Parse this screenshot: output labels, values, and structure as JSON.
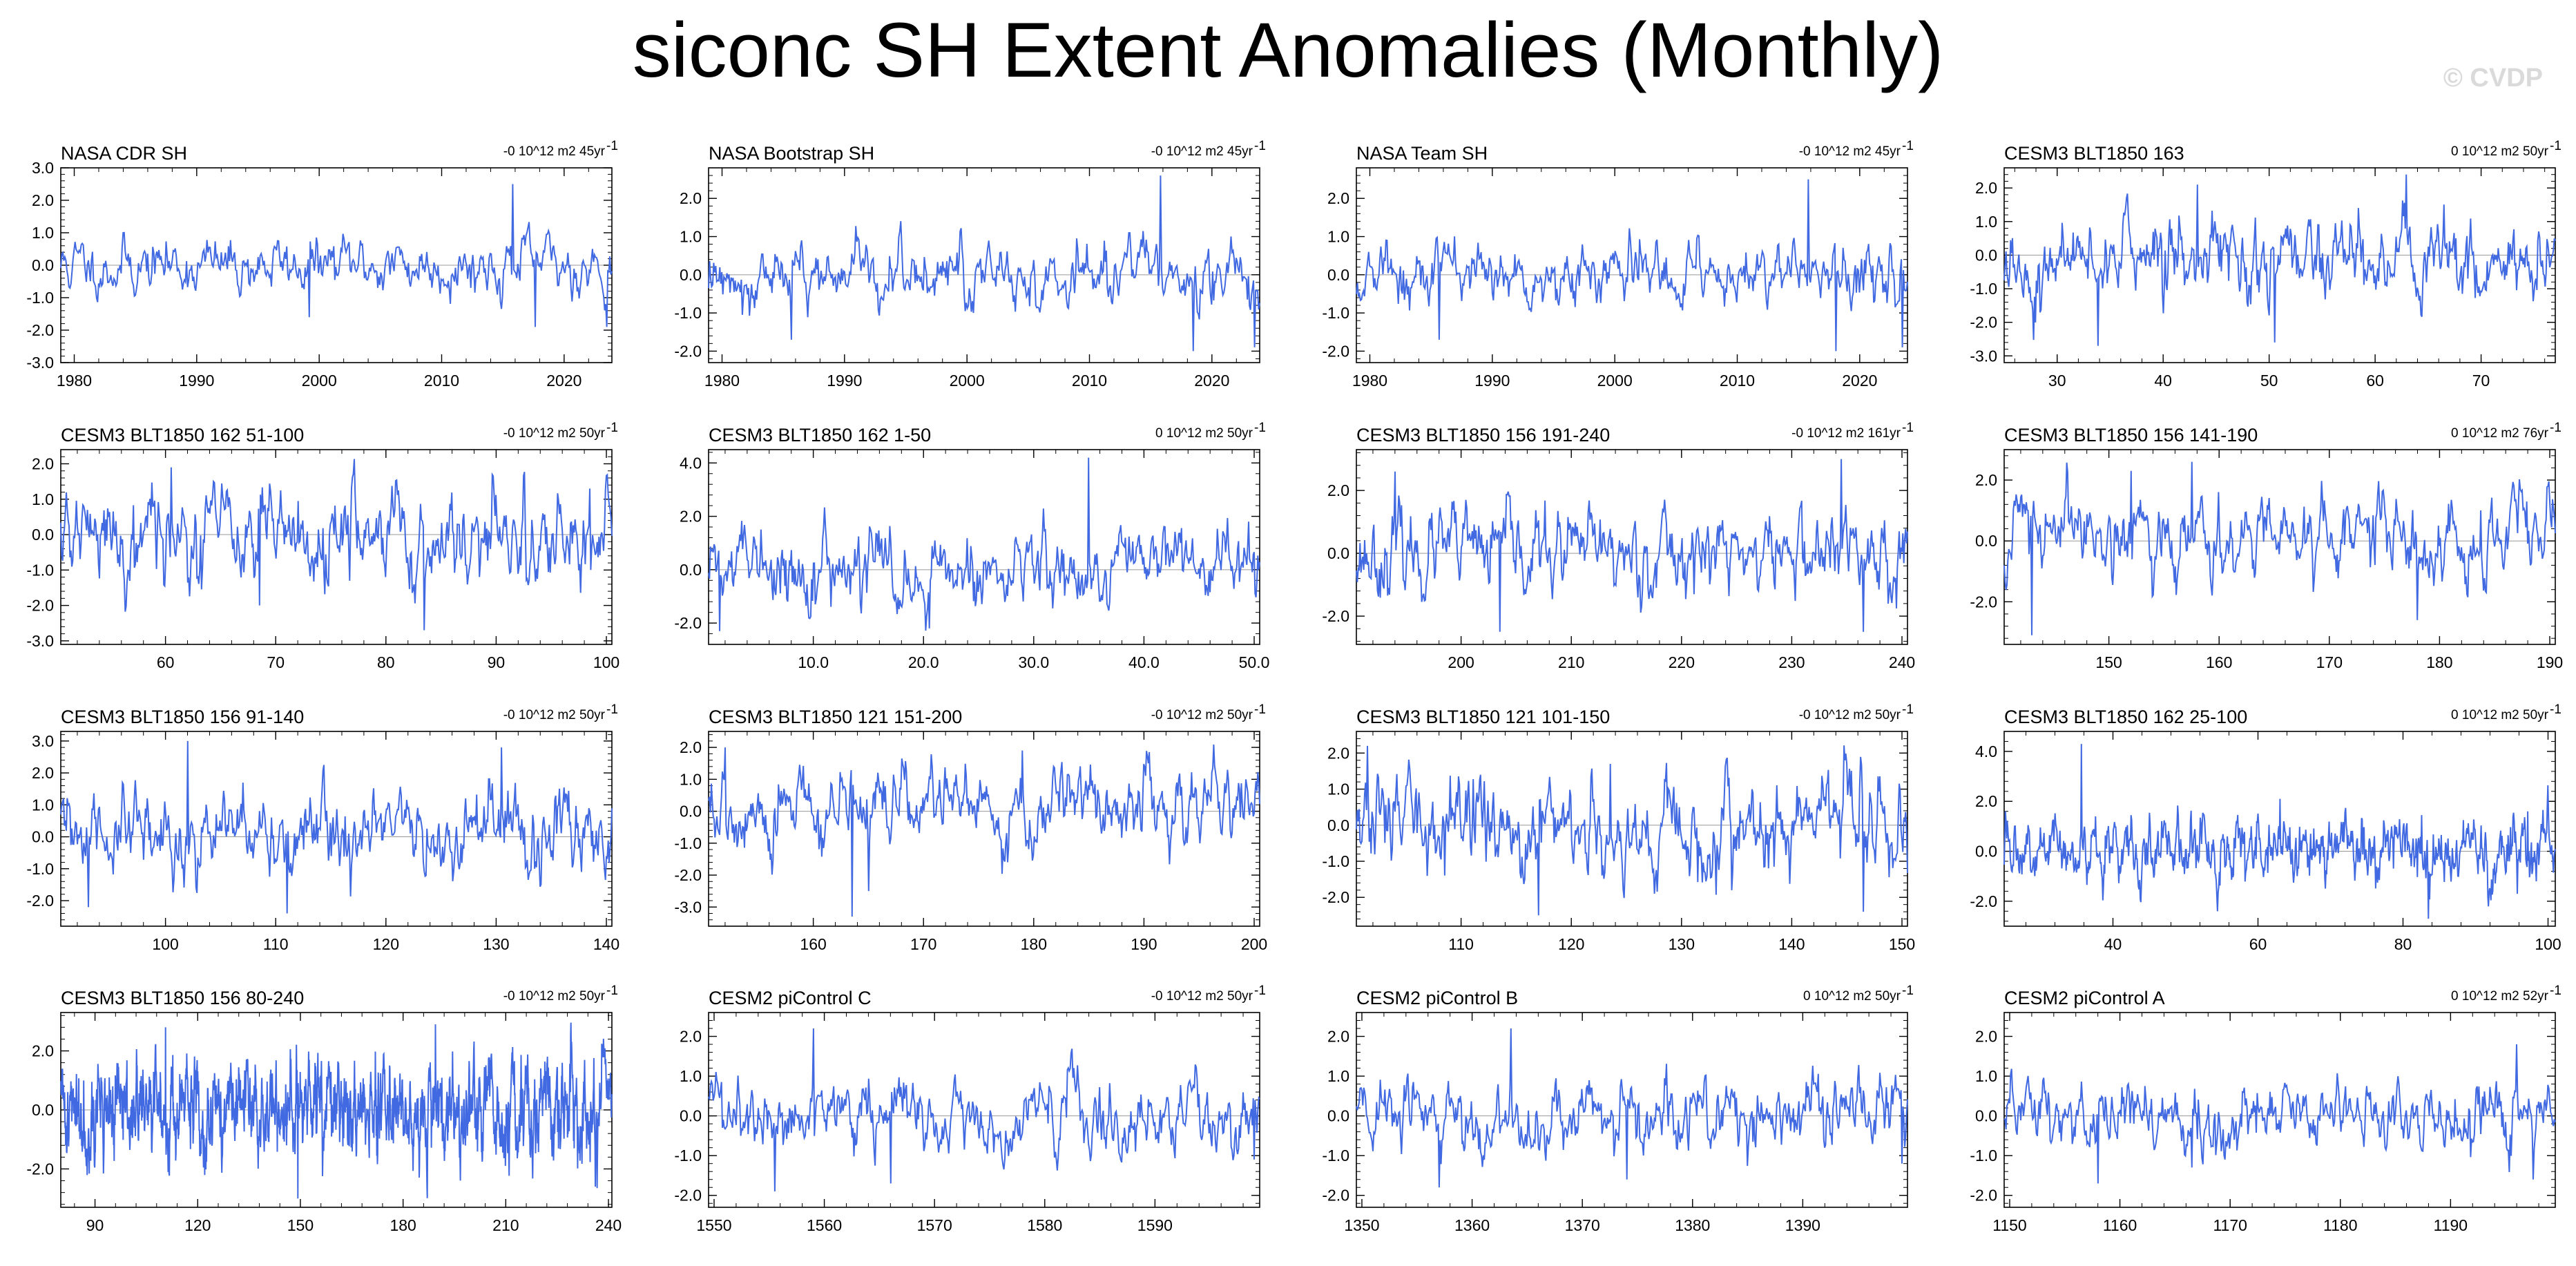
{
  "title": "siconc SH Extent Anomalies (Monthly)",
  "watermark": "© CVDP",
  "chart_data": [
    {
      "type": "line",
      "title": "NASA CDR SH",
      "trend": "-0 10^12 m2 45yr",
      "series_color": "#4169e1",
      "x_range": [
        1978.9,
        2023.9
      ],
      "ylim": [
        -3,
        3
      ],
      "x_ticks": [
        1980,
        1990,
        2000,
        2010,
        2020
      ],
      "y_ticks": [
        "3.0",
        "2.0",
        "1.0",
        "0.0",
        "-1.0",
        "-2.0",
        "-3.0"
      ],
      "y_tick_values": [
        3,
        2,
        1,
        0,
        -1,
        -2,
        -3
      ],
      "n_points": 540,
      "seed": 11,
      "amplitude": 0.5,
      "extremes": [
        [
          0.82,
          2.5
        ],
        [
          0.86,
          -1.9
        ],
        [
          0.99,
          -1.9
        ],
        [
          0.45,
          -1.6
        ]
      ]
    },
    {
      "type": "line",
      "title": "NASA Bootstrap SH",
      "trend": "-0 10^12 m2 45yr",
      "series_color": "#4169e1",
      "x_range": [
        1978.9,
        2023.9
      ],
      "ylim": [
        -2.3,
        2.8
      ],
      "x_ticks": [
        1980,
        1990,
        2000,
        2010,
        2020
      ],
      "y_ticks": [
        "2.0",
        "1.0",
        "0.0",
        "-1.0",
        "-2.0"
      ],
      "y_tick_values": [
        2,
        1,
        0,
        -1,
        -2
      ],
      "n_points": 540,
      "seed": 12,
      "amplitude": 0.5,
      "extremes": [
        [
          0.82,
          2.6
        ],
        [
          0.88,
          -2.0
        ],
        [
          0.99,
          -1.9
        ],
        [
          0.15,
          -1.7
        ]
      ]
    },
    {
      "type": "line",
      "title": "NASA Team SH",
      "trend": "-0 10^12 m2 45yr",
      "series_color": "#4169e1",
      "x_range": [
        1978.9,
        2023.9
      ],
      "ylim": [
        -2.3,
        2.8
      ],
      "x_ticks": [
        1980,
        1990,
        2000,
        2010,
        2020
      ],
      "y_ticks": [
        "2.0",
        "1.0",
        "0.0",
        "-1.0",
        "-2.0"
      ],
      "y_tick_values": [
        2,
        1,
        0,
        -1,
        -2
      ],
      "n_points": 540,
      "seed": 13,
      "amplitude": 0.5,
      "extremes": [
        [
          0.82,
          2.5
        ],
        [
          0.87,
          -2.0
        ],
        [
          0.99,
          -1.9
        ],
        [
          0.15,
          -1.7
        ]
      ]
    },
    {
      "type": "line",
      "title": "CESM3 BLT1850 163",
      "trend": "0 10^12 m2 50yr",
      "series_color": "#4169e1",
      "x_range": [
        25,
        77
      ],
      "ylim": [
        -3.2,
        2.6
      ],
      "x_ticks": [
        30,
        40,
        50,
        60,
        70
      ],
      "y_ticks": [
        "2.0",
        "1.0",
        "0.0",
        "-1.0",
        "-2.0",
        "-3.0"
      ],
      "y_tick_values": [
        2,
        1,
        0,
        -1,
        -2,
        -3
      ],
      "n_points": 600,
      "seed": 14,
      "amplitude": 0.75,
      "extremes": [
        [
          0.73,
          2.4
        ],
        [
          0.17,
          -2.7
        ],
        [
          0.49,
          -2.6
        ],
        [
          0.35,
          2.1
        ]
      ]
    },
    {
      "type": "line",
      "title": "CESM3 BLT1850 162 51-100",
      "trend": "-0 10^12 m2 50yr",
      "series_color": "#4169e1",
      "x_range": [
        50.5,
        100.5
      ],
      "ylim": [
        -3.1,
        2.4
      ],
      "x_ticks": [
        60,
        70,
        80,
        90,
        100
      ],
      "y_ticks": [
        "2.0",
        "1.0",
        "0.0",
        "-1.0",
        "-2.0",
        "-3.0"
      ],
      "y_tick_values": [
        2,
        1,
        0,
        -1,
        -2,
        -3
      ],
      "n_points": 600,
      "seed": 21,
      "amplitude": 0.8,
      "extremes": [
        [
          0.66,
          -2.7
        ],
        [
          0.2,
          1.9
        ],
        [
          0.36,
          -2.0
        ],
        [
          0.96,
          1.3
        ]
      ]
    },
    {
      "type": "line",
      "title": "CESM3 BLT1850 162 1-50",
      "trend": "0 10^12 m2 50yr",
      "series_color": "#4169e1",
      "x_range": [
        0.5,
        50.5
      ],
      "ylim": [
        -2.8,
        4.5
      ],
      "x_ticks": [
        10,
        20,
        30,
        40,
        50
      ],
      "x_tick_labels": [
        "10.0",
        "20.0",
        "30.0",
        "40.0",
        "50.0"
      ],
      "y_ticks": [
        "4.0",
        "2.0",
        "0.0",
        "-2.0"
      ],
      "y_tick_values": [
        4,
        2,
        0,
        -2
      ],
      "n_points": 600,
      "seed": 22,
      "amplitude": 0.8,
      "extremes": [
        [
          0.69,
          4.2
        ],
        [
          0.02,
          -2.3
        ],
        [
          0.98,
          1.8
        ],
        [
          0.4,
          -2.2
        ]
      ]
    },
    {
      "type": "line",
      "title": "CESM3 BLT1850 156 191-240",
      "trend": "-0 10^12 m2 161yr",
      "series_color": "#4169e1",
      "x_range": [
        190.5,
        240.5
      ],
      "ylim": [
        -2.9,
        3.3
      ],
      "x_ticks": [
        200,
        210,
        220,
        230,
        240
      ],
      "y_ticks": [
        "2.0",
        "0.0",
        "-2.0"
      ],
      "y_tick_values": [
        2,
        0,
        -2
      ],
      "n_points": 600,
      "seed": 23,
      "amplitude": 0.8,
      "extremes": [
        [
          0.88,
          3.0
        ],
        [
          0.92,
          -2.5
        ],
        [
          0.26,
          -2.5
        ],
        [
          0.07,
          2.6
        ]
      ]
    },
    {
      "type": "line",
      "title": "CESM3 BLT1850 156 141-190",
      "trend": "0 10^12 m2 76yr",
      "series_color": "#4169e1",
      "x_range": [
        140.5,
        190.5
      ],
      "ylim": [
        -3.4,
        3.0
      ],
      "x_ticks": [
        150,
        160,
        170,
        180,
        190
      ],
      "y_ticks": [
        "2.0",
        "0.0",
        "-2.0"
      ],
      "y_tick_values": [
        2,
        0,
        -2
      ],
      "n_points": 600,
      "seed": 24,
      "amplitude": 0.8,
      "extremes": [
        [
          0.34,
          2.6
        ],
        [
          0.05,
          -3.1
        ],
        [
          0.75,
          -2.6
        ],
        [
          0.23,
          2.3
        ]
      ]
    },
    {
      "type": "line",
      "title": "CESM3 BLT1850 156 91-140",
      "trend": "-0 10^12 m2 50yr",
      "series_color": "#4169e1",
      "x_range": [
        90.5,
        140.5
      ],
      "ylim": [
        -2.8,
        3.3
      ],
      "x_ticks": [
        100,
        110,
        120,
        130,
        140
      ],
      "y_ticks": [
        "3.0",
        "2.0",
        "1.0",
        "0.0",
        "-1.0",
        "-2.0"
      ],
      "y_tick_values": [
        3,
        2,
        1,
        0,
        -1,
        -2
      ],
      "n_points": 600,
      "seed": 31,
      "amplitude": 0.8,
      "extremes": [
        [
          0.23,
          3.0
        ],
        [
          0.41,
          -2.4
        ],
        [
          0.8,
          2.8
        ],
        [
          0.05,
          -2.2
        ]
      ]
    },
    {
      "type": "line",
      "title": "CESM3 BLT1850 121 151-200",
      "trend": "-0 10^12 m2 50yr",
      "series_color": "#4169e1",
      "x_range": [
        150.5,
        200.5
      ],
      "ylim": [
        -3.6,
        2.5
      ],
      "x_ticks": [
        160,
        170,
        180,
        190,
        200
      ],
      "y_ticks": [
        "2.0",
        "1.0",
        "0.0",
        "-1.0",
        "-2.0",
        "-3.0"
      ],
      "y_tick_values": [
        2,
        1,
        0,
        -1,
        -2,
        -3
      ],
      "n_points": 600,
      "seed": 32,
      "amplitude": 0.75,
      "extremes": [
        [
          0.26,
          -3.3
        ],
        [
          0.03,
          2.0
        ],
        [
          0.57,
          1.9
        ],
        [
          0.29,
          -2.5
        ]
      ]
    },
    {
      "type": "line",
      "title": "CESM3 BLT1850 121 101-150",
      "trend": "-0 10^12 m2 50yr",
      "series_color": "#4169e1",
      "x_range": [
        100.5,
        150.5
      ],
      "ylim": [
        -2.8,
        2.6
      ],
      "x_ticks": [
        110,
        120,
        130,
        140,
        150
      ],
      "y_ticks": [
        "2.0",
        "1.0",
        "0.0",
        "-1.0",
        "-2.0"
      ],
      "y_tick_values": [
        2,
        1,
        0,
        -1,
        -2
      ],
      "n_points": 600,
      "seed": 33,
      "amplitude": 0.8,
      "extremes": [
        [
          0.02,
          2.2
        ],
        [
          0.33,
          -2.5
        ],
        [
          0.46,
          1.7
        ],
        [
          0.92,
          -2.4
        ]
      ]
    },
    {
      "type": "line",
      "title": "CESM3 BLT1850 162 25-100",
      "trend": "0 10^12 m2 50yr",
      "series_color": "#4169e1",
      "x_range": [
        25,
        101
      ],
      "ylim": [
        -3.0,
        4.8
      ],
      "x_ticks": [
        40,
        60,
        80,
        100
      ],
      "y_ticks": [
        "4.0",
        "2.0",
        "0.0",
        "-2.0"
      ],
      "y_tick_values": [
        4,
        2,
        0,
        -2
      ],
      "n_points": 900,
      "seed": 34,
      "amplitude": 0.8,
      "extremes": [
        [
          0.14,
          4.3
        ],
        [
          0.77,
          -2.7
        ],
        [
          0.5,
          2.1
        ],
        [
          0.95,
          1.6
        ]
      ]
    },
    {
      "type": "line",
      "title": "CESM3 BLT1850 156 80-240",
      "trend": "-0 10^12 m2 50yr",
      "series_color": "#4169e1",
      "x_range": [
        80,
        241
      ],
      "ylim": [
        -3.3,
        3.3
      ],
      "x_ticks": [
        90,
        120,
        150,
        180,
        210,
        240
      ],
      "y_ticks": [
        "2.0",
        "0.0",
        "-2.0"
      ],
      "y_tick_values": [
        2,
        0,
        -2
      ],
      "n_points": 1900,
      "seed": 41,
      "amplitude": 0.95,
      "extremes": [
        [
          0.43,
          -3.0
        ],
        [
          0.19,
          2.8
        ],
        [
          0.68,
          2.9
        ],
        [
          0.97,
          -2.6
        ]
      ]
    },
    {
      "type": "line",
      "title": "CESM2 piControl C",
      "trend": "-0 10^12 m2 50yr",
      "series_color": "#4169e1",
      "x_range": [
        1549.5,
        1599.5
      ],
      "ylim": [
        -2.3,
        2.6
      ],
      "x_ticks": [
        1550,
        1560,
        1570,
        1580,
        1590
      ],
      "y_ticks": [
        "2.0",
        "1.0",
        "0.0",
        "-1.0",
        "-2.0"
      ],
      "y_tick_values": [
        2,
        1,
        0,
        -1,
        -2
      ],
      "n_points": 600,
      "seed": 42,
      "amplitude": 0.55,
      "extremes": [
        [
          0.19,
          2.2
        ],
        [
          0.12,
          -1.9
        ],
        [
          0.33,
          -1.7
        ],
        [
          0.99,
          -1.1
        ]
      ]
    },
    {
      "type": "line",
      "title": "CESM2 piControl B",
      "trend": "0 10^12 m2 50yr",
      "series_color": "#4169e1",
      "x_range": [
        1349.5,
        1399.5
      ],
      "ylim": [
        -2.3,
        2.6
      ],
      "x_ticks": [
        1350,
        1360,
        1370,
        1380,
        1390
      ],
      "y_ticks": [
        "2.0",
        "1.0",
        "0.0",
        "-1.0",
        "-2.0"
      ],
      "y_tick_values": [
        2,
        1,
        0,
        -1,
        -2
      ],
      "n_points": 600,
      "seed": 43,
      "amplitude": 0.55,
      "extremes": [
        [
          0.28,
          2.2
        ],
        [
          0.15,
          -1.8
        ],
        [
          0.49,
          -1.6
        ],
        [
          0.99,
          -1.2
        ]
      ]
    },
    {
      "type": "line",
      "title": "CESM2 piControl A",
      "trend": "0 10^12 m2 52yr",
      "series_color": "#4169e1",
      "x_range": [
        1149.5,
        1199.5
      ],
      "ylim": [
        -2.3,
        2.6
      ],
      "x_ticks": [
        1150,
        1160,
        1170,
        1180,
        1190
      ],
      "y_ticks": [
        "2.0",
        "1.0",
        "0.0",
        "-1.0",
        "-2.0"
      ],
      "y_tick_values": [
        2,
        1,
        0,
        -1,
        -2
      ],
      "n_points": 600,
      "seed": 44,
      "amplitude": 0.55,
      "extremes": [
        [
          0.93,
          1.8
        ],
        [
          0.17,
          -1.7
        ],
        [
          0.96,
          -1.6
        ],
        [
          0.34,
          -1.3
        ]
      ]
    }
  ]
}
